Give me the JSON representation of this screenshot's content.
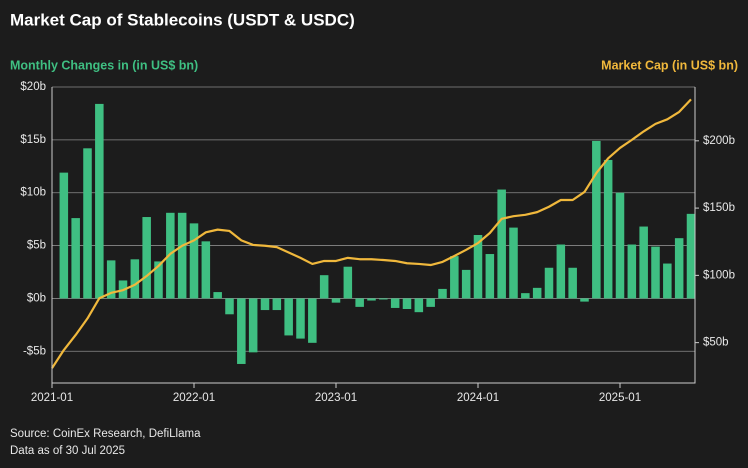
{
  "chart_data": {
    "type": "bar+line",
    "title": "Market Cap of Stablecoins (USDT & USDC)",
    "y_label": "Monthly Changes in (in US$ bn)",
    "y2_label": "Market Cap (in US$ bn)",
    "source": "Source: CoinEx Research, DefiLlama",
    "note": "Data as of 30 Jul 2025",
    "xlim": [
      "2021-01",
      "2025-07"
    ],
    "xticks": [
      "2021-01",
      "2022-01",
      "2023-01",
      "2024-01",
      "2025-01"
    ],
    "ylim": [
      -8,
      20
    ],
    "yticks": [
      {
        "value": -5,
        "label": "-$5b"
      },
      {
        "value": 0,
        "label": "$0b"
      },
      {
        "value": 5,
        "label": "$5b"
      },
      {
        "value": 10,
        "label": "$10b"
      },
      {
        "value": 15,
        "label": "$15b"
      },
      {
        "value": 20,
        "label": "$20b"
      }
    ],
    "y2lim": [
      20,
      240
    ],
    "y2ticks": [
      {
        "value": 50,
        "label": "$50b"
      },
      {
        "value": 100,
        "label": "$100b"
      },
      {
        "value": 150,
        "label": "$150b"
      },
      {
        "value": 200,
        "label": "$200b"
      }
    ],
    "grid": true,
    "series": [
      {
        "name": "Monthly Changes",
        "type": "bar",
        "color": "#3fbf82",
        "x": [
          "2021-02",
          "2021-03",
          "2021-04",
          "2021-05",
          "2021-06",
          "2021-07",
          "2021-08",
          "2021-09",
          "2021-10",
          "2021-11",
          "2021-12",
          "2022-01",
          "2022-02",
          "2022-03",
          "2022-04",
          "2022-05",
          "2022-06",
          "2022-07",
          "2022-08",
          "2022-09",
          "2022-10",
          "2022-11",
          "2022-12",
          "2023-01",
          "2023-02",
          "2023-03",
          "2023-04",
          "2023-05",
          "2023-06",
          "2023-07",
          "2023-08",
          "2023-09",
          "2023-10",
          "2023-11",
          "2023-12",
          "2024-01",
          "2024-02",
          "2024-03",
          "2024-04",
          "2024-05",
          "2024-06",
          "2024-07",
          "2024-08",
          "2024-09",
          "2024-10",
          "2024-11",
          "2024-12",
          "2025-01",
          "2025-02",
          "2025-03",
          "2025-04",
          "2025-05",
          "2025-06",
          "2025-07"
        ],
        "values": [
          11.9,
          7.6,
          14.2,
          18.4,
          3.6,
          1.7,
          3.7,
          7.7,
          3.5,
          8.1,
          8.1,
          7.1,
          5.4,
          0.6,
          -1.5,
          -6.2,
          -5.1,
          -1.1,
          -1.1,
          -3.5,
          -3.8,
          -4.2,
          2.2,
          -0.4,
          3.0,
          -0.8,
          -0.2,
          -0.1,
          -0.9,
          -1.0,
          -1.3,
          -0.8,
          0.9,
          4.0,
          2.7,
          6.0,
          4.2,
          10.3,
          6.7,
          0.5,
          1.0,
          2.9,
          5.1,
          2.9,
          -0.3,
          14.9,
          13.1,
          10.0,
          5.1,
          6.8,
          4.9,
          3.3,
          5.7,
          8.0
        ]
      },
      {
        "name": "Market Cap",
        "type": "line",
        "axis": "y2",
        "color": "#f0b83c",
        "x": [
          "2021-01",
          "2021-02",
          "2021-03",
          "2021-04",
          "2021-05",
          "2021-06",
          "2021-07",
          "2021-08",
          "2021-09",
          "2021-10",
          "2021-11",
          "2021-12",
          "2022-01",
          "2022-02",
          "2022-03",
          "2022-04",
          "2022-05",
          "2022-06",
          "2022-07",
          "2022-08",
          "2022-09",
          "2022-10",
          "2022-11",
          "2022-12",
          "2023-01",
          "2023-02",
          "2023-03",
          "2023-04",
          "2023-05",
          "2023-06",
          "2023-07",
          "2023-08",
          "2023-09",
          "2023-10",
          "2023-11",
          "2023-12",
          "2024-01",
          "2024-02",
          "2024-03",
          "2024-04",
          "2024-05",
          "2024-06",
          "2024-07",
          "2024-08",
          "2024-09",
          "2024-10",
          "2024-11",
          "2024-12",
          "2025-01",
          "2025-02",
          "2025-03",
          "2025-04",
          "2025-05",
          "2025-06",
          "2025-07"
        ],
        "values": [
          31,
          44.5,
          55.7,
          68,
          83,
          87,
          89,
          93,
          99.5,
          107,
          116,
          122,
          126,
          132,
          134,
          133,
          126,
          122.6,
          122,
          121,
          117,
          113,
          108.5,
          110.7,
          110.7,
          113,
          112,
          112,
          111.4,
          110.7,
          109,
          108.5,
          107.7,
          110,
          114.4,
          119,
          124,
          131.5,
          142,
          144,
          145,
          147,
          151,
          156,
          156,
          162,
          176,
          187,
          194.7,
          200.7,
          207,
          212.6,
          216,
          221.5,
          230.8
        ]
      }
    ]
  }
}
